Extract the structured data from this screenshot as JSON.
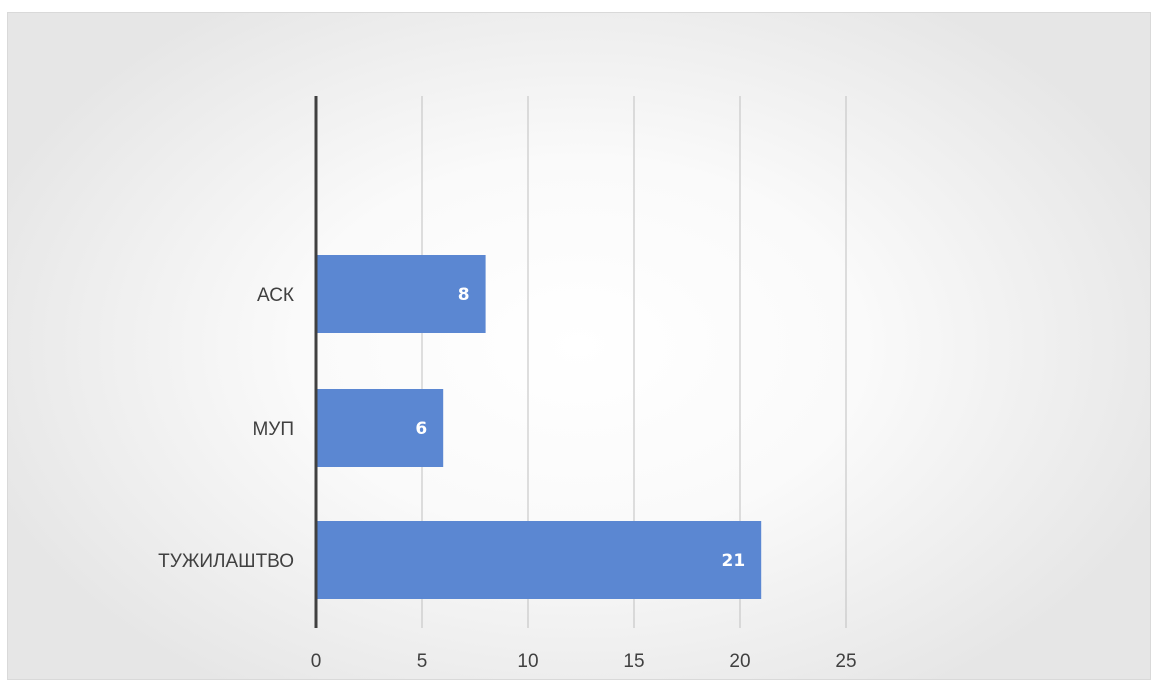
{
  "chart_data": {
    "type": "bar",
    "orientation": "horizontal",
    "categories": [
      "АСК",
      "МУП",
      "ТУЖИЛАШТВО"
    ],
    "values": [
      8,
      6,
      21
    ],
    "data_labels": [
      "8",
      "6",
      "21"
    ],
    "title": "",
    "xlabel": "",
    "ylabel": "",
    "xlim": [
      0,
      25
    ],
    "xticks": [
      0,
      5,
      10,
      15,
      20,
      25
    ],
    "xtick_labels": [
      "0",
      "5",
      "10",
      "15",
      "20",
      "25"
    ],
    "grid": true,
    "legend": "none",
    "colors": {
      "bar": "#5b87d2",
      "grid": "#bfbfbf",
      "axis": "#404040",
      "text": "#404040",
      "data_label": "#ffffff"
    }
  }
}
